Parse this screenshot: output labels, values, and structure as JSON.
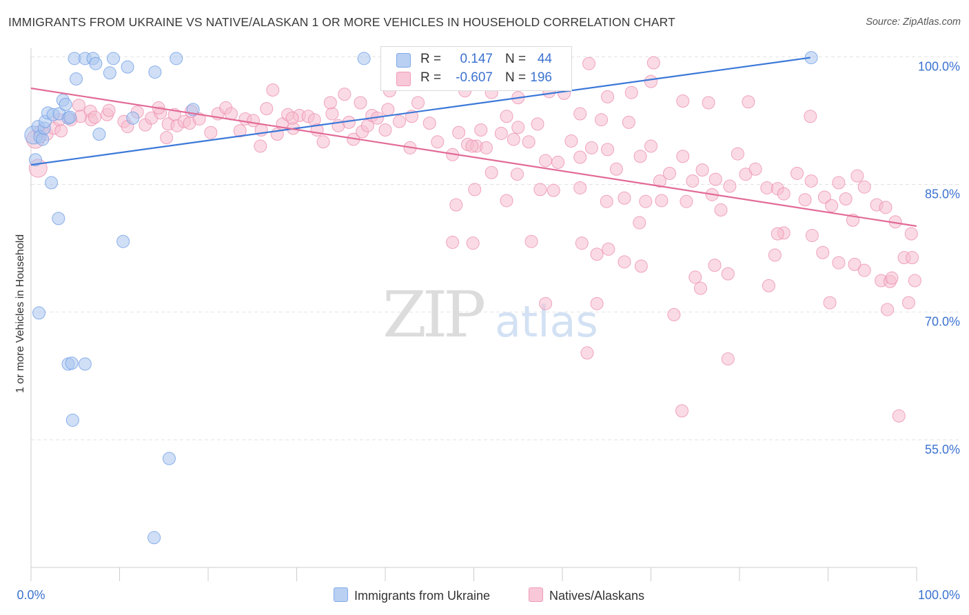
{
  "title": "IMMIGRANTS FROM UKRAINE VS NATIVE/ALASKAN 1 OR MORE VEHICLES IN HOUSEHOLD CORRELATION CHART",
  "source": "Source: ZipAtlas.com",
  "watermark": {
    "zip": "ZIP",
    "atlas": "atlas"
  },
  "legend": {
    "r_label": "R =",
    "n_label": "N =",
    "series": [
      {
        "r": "0.147",
        "n": "44"
      },
      {
        "r": "-0.607",
        "n": "196"
      }
    ]
  },
  "colors": {
    "blue_fill": "#a9c4ef",
    "blue_stroke": "#6f9ee6",
    "blue_line": "#3b78d8",
    "pink_fill": "#f6bdd0",
    "pink_stroke": "#ec8fae",
    "pink_line": "#e26a96",
    "value_text": "#3b72d0",
    "grid": "#e2e2e2",
    "axis": "#cccccc"
  },
  "chart_data": {
    "type": "scatter",
    "title": "IMMIGRANTS FROM UKRAINE VS NATIVE/ALASKAN 1 OR MORE VEHICLES IN HOUSEHOLD CORRELATION CHART",
    "xlabel": "",
    "ylabel": "1 or more Vehicles in Household",
    "xlim": [
      0,
      100
    ],
    "ylim": [
      40,
      101
    ],
    "x_tick_labels": [
      "0.0%",
      "100.0%"
    ],
    "y_ticks": [
      {
        "value": 100,
        "label": "100.0%"
      },
      {
        "value": 85,
        "label": "85.0%"
      },
      {
        "value": 70,
        "label": "70.0%"
      },
      {
        "value": 55,
        "label": "55.0%"
      }
    ],
    "grid": true,
    "legend_position": "bottom-center",
    "series": [
      {
        "name": "Immigrants from Ukraine",
        "color": "#a9c4ef",
        "trend": {
          "x": [
            0,
            88
          ],
          "y": [
            87.3,
            99.9
          ]
        },
        "points": [
          [
            0.3,
            90.8,
            2
          ],
          [
            0.5,
            87.9,
            1
          ],
          [
            0.8,
            91.8,
            1
          ],
          [
            1.0,
            90.6,
            1
          ],
          [
            1.3,
            90.3,
            1
          ],
          [
            1.5,
            91.6,
            1
          ],
          [
            1.6,
            92.4,
            1
          ],
          [
            1.9,
            93.4,
            1
          ],
          [
            2.5,
            93.2,
            1
          ],
          [
            3.2,
            93.3,
            1
          ],
          [
            3.6,
            94.9,
            1
          ],
          [
            3.9,
            94.4,
            1
          ],
          [
            4.2,
            92.8,
            1
          ],
          [
            4.4,
            92.9,
            1
          ],
          [
            4.9,
            99.8,
            1
          ],
          [
            5.1,
            97.4,
            1
          ],
          [
            6.1,
            99.8,
            1
          ],
          [
            7.0,
            99.8,
            1
          ],
          [
            7.3,
            99.2,
            1
          ],
          [
            7.7,
            90.9,
            1
          ],
          [
            8.9,
            98.1,
            1
          ],
          [
            9.3,
            99.8,
            1
          ],
          [
            10.9,
            98.8,
            1
          ],
          [
            11.5,
            92.8,
            1
          ],
          [
            14.0,
            98.2,
            1
          ],
          [
            16.4,
            99.8,
            1
          ],
          [
            18.3,
            93.8,
            1
          ],
          [
            37.6,
            99.8,
            1
          ],
          [
            88.1,
            99.9,
            1
          ],
          [
            2.3,
            85.2,
            1
          ],
          [
            3.1,
            81.0,
            1
          ],
          [
            10.4,
            78.3,
            1
          ],
          [
            0.9,
            69.9,
            1
          ],
          [
            4.2,
            63.9,
            1
          ],
          [
            4.6,
            64.0,
            1
          ],
          [
            6.1,
            63.9,
            1
          ],
          [
            4.7,
            57.3,
            1
          ],
          [
            15.6,
            52.8,
            1
          ],
          [
            13.9,
            43.5,
            1
          ]
        ]
      },
      {
        "name": "Natives/Alaskans",
        "color": "#f6bdd0",
        "trend": {
          "x": [
            0,
            100
          ],
          "y": [
            96.3,
            80.1
          ]
        },
        "points": [
          [
            0.5,
            90.3,
            2
          ],
          [
            0.8,
            86.9,
            2
          ],
          [
            1.0,
            91.2,
            1
          ],
          [
            1.8,
            90.9,
            1
          ],
          [
            2.6,
            91.6,
            1
          ],
          [
            3.2,
            92.6,
            1
          ],
          [
            3.4,
            91.3,
            1
          ],
          [
            4.5,
            92.6,
            1
          ],
          [
            5.4,
            94.3,
            1
          ],
          [
            5.6,
            93.0,
            1
          ],
          [
            6.7,
            93.6,
            1
          ],
          [
            6.8,
            92.6,
            1
          ],
          [
            7.2,
            92.9,
            1
          ],
          [
            8.6,
            93.2,
            1
          ],
          [
            8.8,
            93.7,
            1
          ],
          [
            10.5,
            92.4,
            1
          ],
          [
            10.9,
            91.8,
            1
          ],
          [
            12.0,
            93.5,
            1
          ],
          [
            12.9,
            92.0,
            1
          ],
          [
            13.6,
            92.8,
            1
          ],
          [
            14.6,
            93.4,
            1
          ],
          [
            14.4,
            94.0,
            1
          ],
          [
            15.3,
            90.5,
            1
          ],
          [
            15.5,
            92.1,
            1
          ],
          [
            16.2,
            93.2,
            1
          ],
          [
            16.5,
            91.9,
            1
          ],
          [
            17.3,
            92.4,
            1
          ],
          [
            17.9,
            92.2,
            1
          ],
          [
            18.1,
            93.6,
            1
          ],
          [
            19.0,
            92.7,
            1
          ],
          [
            20.3,
            91.1,
            1
          ],
          [
            21.1,
            93.3,
            1
          ],
          [
            22.0,
            94.0,
            1
          ],
          [
            22.6,
            93.3,
            1
          ],
          [
            23.6,
            91.3,
            1
          ],
          [
            24.2,
            92.7,
            1
          ],
          [
            25.1,
            92.5,
            1
          ],
          [
            25.9,
            89.5,
            1
          ],
          [
            26.0,
            91.4,
            1
          ],
          [
            26.6,
            93.9,
            1
          ],
          [
            27.3,
            96.1,
            1
          ],
          [
            27.8,
            90.9,
            1
          ],
          [
            28.4,
            92.1,
            1
          ],
          [
            29.0,
            93.2,
            1
          ],
          [
            29.6,
            91.6,
            1
          ],
          [
            30.3,
            93.1,
            1
          ],
          [
            31.3,
            93.0,
            1
          ],
          [
            32.0,
            92.6,
            1
          ],
          [
            32.3,
            91.4,
            1
          ],
          [
            33.0,
            90.0,
            1
          ],
          [
            34.0,
            93.3,
            1
          ],
          [
            34.7,
            91.9,
            1
          ],
          [
            35.4,
            95.6,
            1
          ],
          [
            35.9,
            92.3,
            1
          ],
          [
            36.4,
            90.3,
            1
          ],
          [
            37.4,
            91.2,
            1
          ],
          [
            38.0,
            91.9,
            1
          ],
          [
            38.5,
            93.1,
            1
          ],
          [
            39.1,
            92.8,
            1
          ],
          [
            40.0,
            91.4,
            1
          ],
          [
            40.3,
            93.8,
            1
          ],
          [
            41.6,
            92.4,
            1
          ],
          [
            42.8,
            89.3,
            1
          ],
          [
            43.0,
            93.0,
            1
          ],
          [
            43.7,
            94.6,
            1
          ],
          [
            45.0,
            92.2,
            1
          ],
          [
            45.9,
            90.0,
            1
          ],
          [
            47.6,
            88.5,
            1
          ],
          [
            48.3,
            91.1,
            1
          ],
          [
            49.3,
            89.7,
            1
          ],
          [
            50.3,
            89.5,
            1
          ],
          [
            50.8,
            91.4,
            1
          ],
          [
            51.4,
            89.3,
            1
          ],
          [
            52.0,
            86.4,
            1
          ],
          [
            53.1,
            91.0,
            1
          ],
          [
            53.7,
            93.0,
            1
          ],
          [
            54.5,
            90.3,
            1
          ],
          [
            55.0,
            91.7,
            1
          ],
          [
            56.2,
            90.0,
            1
          ],
          [
            57.2,
            92.1,
            1
          ],
          [
            58.1,
            87.8,
            1
          ],
          [
            59.5,
            87.6,
            1
          ],
          [
            60.2,
            95.7,
            1
          ],
          [
            61.0,
            90.1,
            1
          ],
          [
            62.0,
            88.2,
            1
          ],
          [
            63.3,
            89.3,
            1
          ],
          [
            64.4,
            92.6,
            1
          ],
          [
            65.1,
            89.1,
            1
          ],
          [
            66.1,
            86.8,
            1
          ],
          [
            67.5,
            92.3,
            1
          ],
          [
            68.8,
            88.3,
            1
          ],
          [
            70.0,
            89.5,
            1
          ],
          [
            71.0,
            85.4,
            1
          ],
          [
            72.1,
            86.3,
            1
          ],
          [
            73.6,
            88.3,
            1
          ],
          [
            74.7,
            85.4,
            1
          ],
          [
            75.8,
            86.7,
            1
          ],
          [
            76.9,
            83.8,
            1
          ],
          [
            77.3,
            85.6,
            1
          ],
          [
            78.9,
            84.8,
            1
          ],
          [
            79.8,
            88.6,
            1
          ],
          [
            80.7,
            86.2,
            1
          ],
          [
            81.8,
            86.8,
            1
          ],
          [
            83.1,
            84.6,
            1
          ],
          [
            84.3,
            84.5,
            1
          ],
          [
            85.0,
            83.9,
            1
          ],
          [
            86.5,
            86.3,
            1
          ],
          [
            87.4,
            83.2,
            1
          ],
          [
            88.1,
            85.4,
            1
          ],
          [
            89.6,
            83.5,
            1
          ],
          [
            90.4,
            82.5,
            1
          ],
          [
            91.2,
            85.2,
            1
          ],
          [
            92.0,
            83.3,
            1
          ],
          [
            93.3,
            86.0,
            1
          ],
          [
            94.1,
            84.7,
            1
          ],
          [
            95.5,
            82.6,
            1
          ],
          [
            96.5,
            82.3,
            1
          ],
          [
            97.6,
            80.6,
            1
          ],
          [
            98.6,
            76.4,
            1
          ],
          [
            99.4,
            79.2,
            1
          ],
          [
            99.8,
            73.7,
            1
          ],
          [
            29.5,
            92.8,
            1
          ],
          [
            33.8,
            94.6,
            1
          ],
          [
            37.2,
            94.6,
            1
          ],
          [
            40.5,
            96.0,
            1
          ],
          [
            43.0,
            97.0,
            1
          ],
          [
            45.6,
            97.8,
            1
          ],
          [
            49.0,
            96.0,
            1
          ],
          [
            52.0,
            95.8,
            1
          ],
          [
            55.0,
            95.2,
            1
          ],
          [
            58.5,
            95.9,
            1
          ],
          [
            62.0,
            93.3,
            1
          ],
          [
            65.1,
            95.3,
            1
          ],
          [
            67.8,
            95.8,
            1
          ],
          [
            70.0,
            97.1,
            1
          ],
          [
            73.6,
            94.8,
            1
          ],
          [
            76.5,
            94.6,
            1
          ],
          [
            81.0,
            94.7,
            1
          ],
          [
            88.0,
            93.0,
            1
          ],
          [
            63.0,
            99.2,
            1
          ],
          [
            70.3,
            99.3,
            1
          ],
          [
            49.8,
            89.5,
            1
          ],
          [
            54.9,
            86.2,
            1
          ],
          [
            50.1,
            84.4,
            1
          ],
          [
            53.7,
            83.1,
            1
          ],
          [
            57.5,
            84.4,
            1
          ],
          [
            62.0,
            84.6,
            1
          ],
          [
            59.0,
            84.3,
            1
          ],
          [
            65.0,
            83.0,
            1
          ],
          [
            67.0,
            83.4,
            1
          ],
          [
            69.4,
            83.0,
            1
          ],
          [
            71.2,
            83.1,
            1
          ],
          [
            74.0,
            83.0,
            1
          ],
          [
            48.0,
            82.6,
            1
          ],
          [
            47.6,
            78.2,
            1
          ],
          [
            49.9,
            78.1,
            1
          ],
          [
            56.5,
            78.3,
            1
          ],
          [
            62.2,
            78.1,
            1
          ],
          [
            63.9,
            76.8,
            1
          ],
          [
            65.2,
            77.4,
            1
          ],
          [
            67.0,
            75.9,
            1
          ],
          [
            68.9,
            75.4,
            1
          ],
          [
            75.0,
            74.1,
            1
          ],
          [
            77.2,
            75.5,
            1
          ],
          [
            78.7,
            74.5,
            1
          ],
          [
            83.3,
            73.1,
            1
          ],
          [
            85.0,
            79.3,
            1
          ],
          [
            89.4,
            77.0,
            1
          ],
          [
            91.2,
            75.8,
            1
          ],
          [
            93.0,
            75.6,
            1
          ],
          [
            96.0,
            73.7,
            1
          ],
          [
            97.0,
            73.6,
            1
          ],
          [
            99.5,
            76.4,
            1
          ],
          [
            97.2,
            74.0,
            1
          ],
          [
            75.6,
            72.8,
            1
          ],
          [
            84.0,
            76.7,
            1
          ],
          [
            88.2,
            79.0,
            1
          ],
          [
            58.1,
            71.0,
            1
          ],
          [
            63.9,
            71.0,
            1
          ],
          [
            72.6,
            69.7,
            1
          ],
          [
            90.2,
            71.1,
            1
          ],
          [
            94.1,
            74.9,
            1
          ],
          [
            96.7,
            70.3,
            1
          ],
          [
            99.1,
            71.1,
            1
          ],
          [
            62.8,
            65.2,
            1
          ],
          [
            78.7,
            64.5,
            1
          ],
          [
            73.5,
            58.4,
            1
          ],
          [
            98.0,
            57.8,
            1
          ],
          [
            92.8,
            80.8,
            1
          ],
          [
            84.3,
            79.2,
            1
          ],
          [
            77.9,
            82.0,
            1
          ],
          [
            68.7,
            80.5,
            1
          ]
        ]
      }
    ]
  },
  "bottom_legend": [
    {
      "label": "Immigrants from Ukraine"
    },
    {
      "label": "Natives/Alaskans"
    }
  ]
}
